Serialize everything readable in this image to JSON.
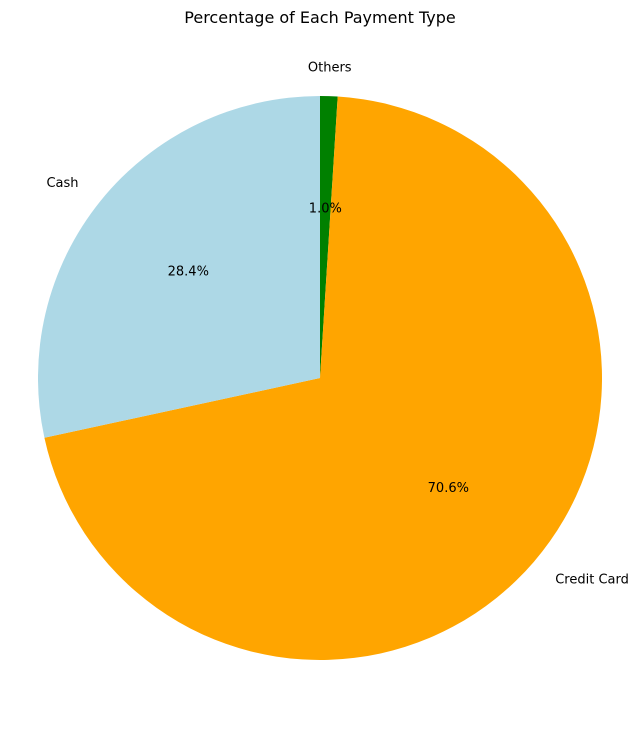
{
  "chart_data": {
    "type": "pie",
    "title": "Percentage of Each Payment Type",
    "slices": [
      {
        "label": "Others",
        "value": 1.0,
        "pct_label": "1.0%",
        "color": "#008000"
      },
      {
        "label": "Credit Card",
        "value": 70.6,
        "pct_label": "70.6%",
        "color": "#ffa500"
      },
      {
        "label": "Cash",
        "value": 28.4,
        "pct_label": "28.4%",
        "color": "#add8e6"
      }
    ],
    "start_angle": "top (90°)",
    "direction": "clockwise"
  }
}
